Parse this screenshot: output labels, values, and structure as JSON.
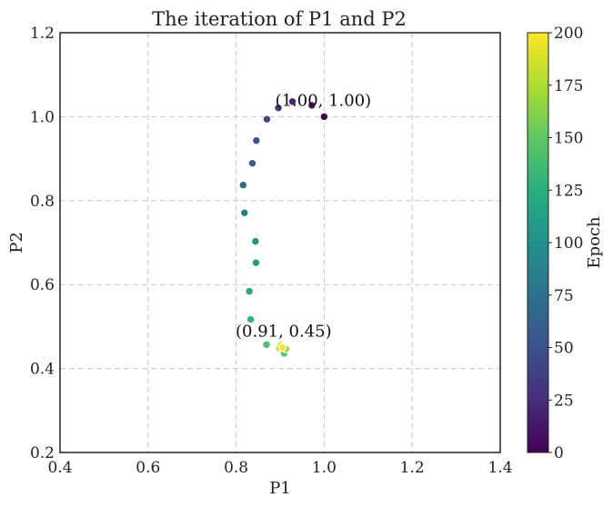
{
  "chart_data": {
    "type": "scatter",
    "title": "The iteration of P1 and P2",
    "xlabel": "P1",
    "ylabel": "P2",
    "xlim": [
      0.4,
      1.4
    ],
    "ylim": [
      0.2,
      1.2
    ],
    "x_ticks": [
      0.4,
      0.6,
      0.8,
      1.0,
      1.2,
      1.4
    ],
    "y_ticks": [
      0.2,
      0.4,
      0.6,
      0.8,
      1.0,
      1.2
    ],
    "x_tick_labels": [
      "0.4",
      "0.6",
      "0.8",
      "1.0",
      "1.2",
      "1.4"
    ],
    "y_tick_labels": [
      "0.2",
      "0.4",
      "0.6",
      "0.8",
      "1.0",
      "1.2"
    ],
    "grid": true,
    "colormap": "viridis",
    "colorbar": {
      "label": "Epoch",
      "min": 0,
      "max": 200,
      "ticks": [
        0,
        25,
        50,
        75,
        100,
        125,
        150,
        175,
        200
      ],
      "tick_labels": [
        "0",
        "25",
        "50",
        "75",
        "100",
        "125",
        "150",
        "175",
        "200"
      ]
    },
    "points": [
      {
        "x": 1.0,
        "y": 1.0,
        "epoch": 0
      },
      {
        "x": 0.972,
        "y": 1.027,
        "epoch": 10
      },
      {
        "x": 0.928,
        "y": 1.036,
        "epoch": 20
      },
      {
        "x": 0.896,
        "y": 1.021,
        "epoch": 30
      },
      {
        "x": 0.87,
        "y": 0.994,
        "epoch": 40
      },
      {
        "x": 0.846,
        "y": 0.943,
        "epoch": 50
      },
      {
        "x": 0.837,
        "y": 0.889,
        "epoch": 60
      },
      {
        "x": 0.816,
        "y": 0.837,
        "epoch": 70
      },
      {
        "x": 0.819,
        "y": 0.771,
        "epoch": 80
      },
      {
        "x": 0.844,
        "y": 0.703,
        "epoch": 100
      },
      {
        "x": 0.845,
        "y": 0.652,
        "epoch": 110
      },
      {
        "x": 0.83,
        "y": 0.584,
        "epoch": 120
      },
      {
        "x": 0.833,
        "y": 0.517,
        "epoch": 130
      },
      {
        "x": 0.869,
        "y": 0.457,
        "epoch": 140
      },
      {
        "x": 0.909,
        "y": 0.436,
        "epoch": 150
      },
      {
        "x": 0.913,
        "y": 0.447,
        "epoch": 165
      },
      {
        "x": 0.898,
        "y": 0.449,
        "epoch": 175
      },
      {
        "x": 0.902,
        "y": 0.456,
        "epoch": 185
      },
      {
        "x": 0.906,
        "y": 0.452,
        "epoch": 195
      },
      {
        "x": 0.905,
        "y": 0.45,
        "epoch": 200
      }
    ],
    "annotations": [
      {
        "text": "(1.00, 1.00)",
        "x": 1.0,
        "y": 1.0
      },
      {
        "text": "(0.91, 0.45)",
        "x": 0.91,
        "y": 0.45
      }
    ]
  }
}
